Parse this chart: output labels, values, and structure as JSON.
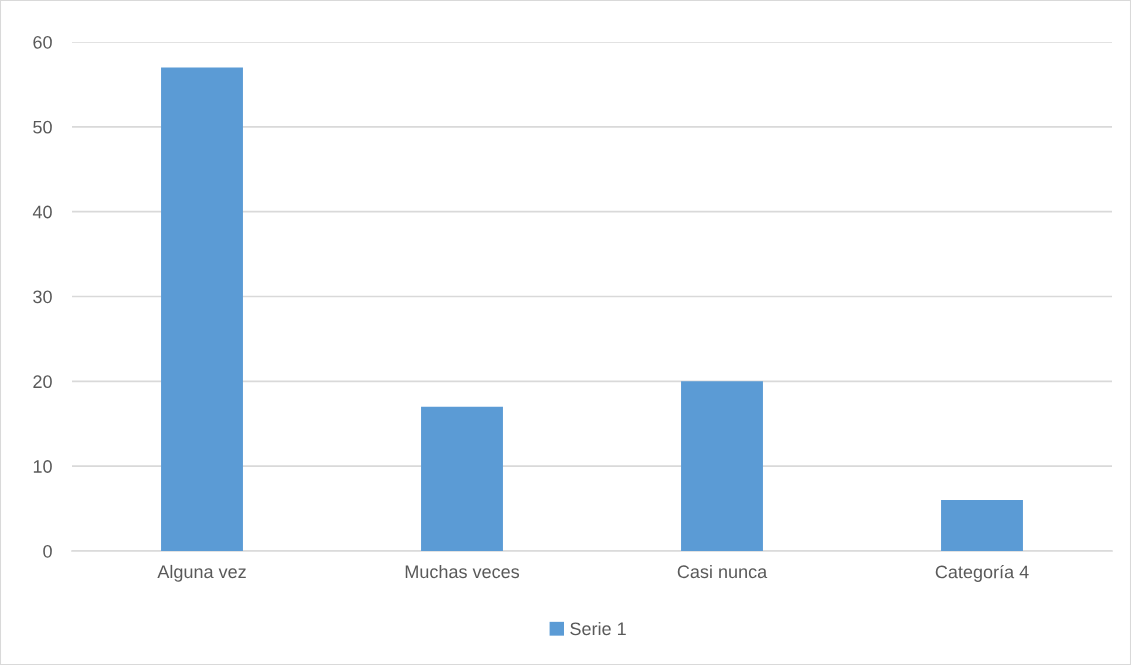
{
  "chart_data": {
    "type": "bar",
    "categories": [
      "Alguna vez",
      "Muchas veces",
      "Casi nunca",
      "Categoría 4"
    ],
    "series": [
      {
        "name": "Serie 1",
        "color": "#5b9bd5",
        "values": [
          57,
          17,
          20,
          6
        ]
      }
    ],
    "ylim": [
      0,
      60
    ],
    "yticks": [
      0,
      10,
      20,
      30,
      40,
      50,
      60
    ],
    "grid": "y",
    "legend": "bottom"
  }
}
